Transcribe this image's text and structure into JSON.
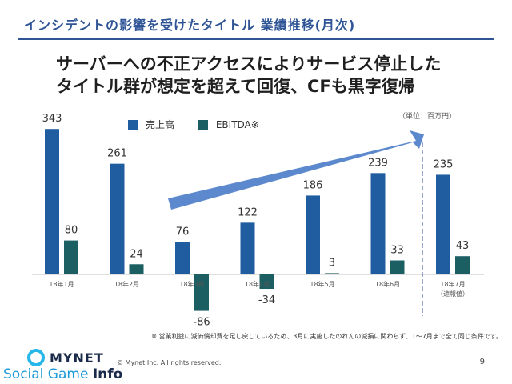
{
  "header": {
    "section_title": "インシデントの影響を受けたタイトル 業績推移(月次)",
    "headline_line1": "サーバーへの不正アクセスによりサービス停止した",
    "headline_line2": "タイトル群が想定を超えて回復、CFも黒字復帰"
  },
  "chart_data": {
    "type": "bar",
    "unit_label": "（単位：百万円）",
    "categories": [
      "18年1月",
      "18年2月",
      "18年3月",
      "18年4月",
      "18年5月",
      "18年6月",
      "18年7月\n（速報値）"
    ],
    "series": [
      {
        "name": "売上高",
        "color": "#1f5da0",
        "values": [
          343,
          261,
          76,
          122,
          186,
          239,
          235
        ]
      },
      {
        "name": "EBITDA※",
        "color": "#1c5f63",
        "values": [
          80,
          24,
          -86,
          -34,
          3,
          33,
          43
        ]
      }
    ],
    "legend_position": "top",
    "grid": false,
    "trend_arrow": true,
    "dashed_divider_before_last": true
  },
  "footer": {
    "footnote": "※ 営業利益に減価償却費を足し戻しているため、3月に実施したのれんの減損に関わらず、1〜7月まで全て同じ条件です。",
    "copyright": "© Mynet Inc. All rights reserved.",
    "page_number": "9",
    "logo": {
      "brand": "MYNET",
      "sub_main": "Social Game",
      "sub_bold": "Info"
    }
  }
}
